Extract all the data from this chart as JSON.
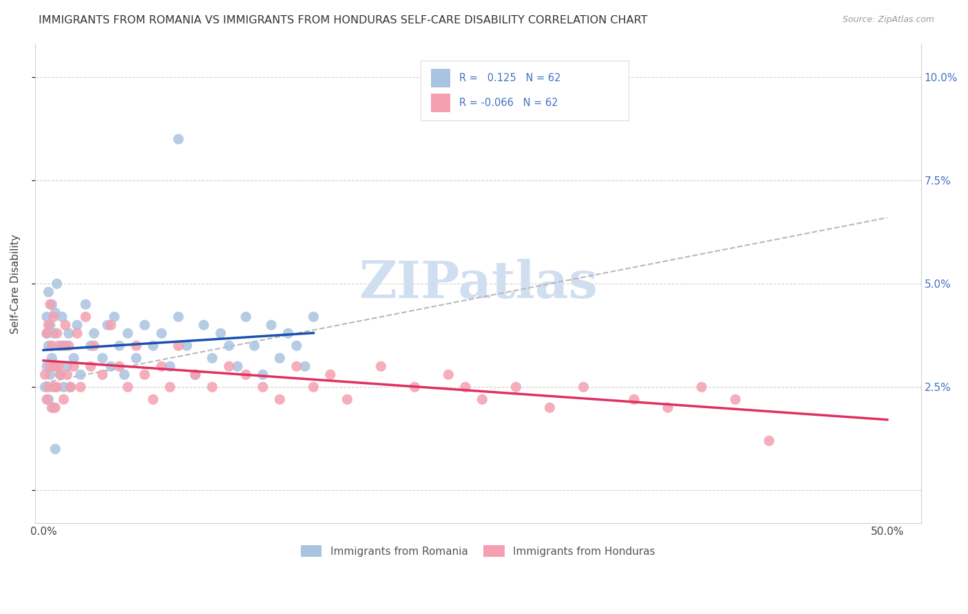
{
  "title": "IMMIGRANTS FROM ROMANIA VS IMMIGRANTS FROM HONDURAS SELF-CARE DISABILITY CORRELATION CHART",
  "source": "Source: ZipAtlas.com",
  "ylabel": "Self-Care Disability",
  "xlim_min": -0.005,
  "xlim_max": 0.52,
  "ylim_min": -0.008,
  "ylim_max": 0.108,
  "xtick_positions": [
    0.0,
    0.1,
    0.2,
    0.3,
    0.4,
    0.5
  ],
  "xtick_labels": [
    "0.0%",
    "",
    "",
    "",
    "",
    "50.0%"
  ],
  "ytick_positions": [
    0.0,
    0.025,
    0.05,
    0.075,
    0.1
  ],
  "ytick_labels_right": [
    "",
    "2.5%",
    "5.0%",
    "7.5%",
    "10.0%"
  ],
  "romania_R": 0.125,
  "honduras_R": -0.066,
  "N": 62,
  "romania_color": "#a8c4e0",
  "honduras_color": "#f4a0b0",
  "romania_line_color": "#1a50b0",
  "honduras_line_color": "#e03060",
  "ref_line_color": "#b8b8b8",
  "right_axis_color": "#4472c4",
  "watermark_color": "#d0dff0",
  "title_fontsize": 11.5,
  "source_fontsize": 9,
  "tick_fontsize": 11,
  "scatter_size": 120
}
